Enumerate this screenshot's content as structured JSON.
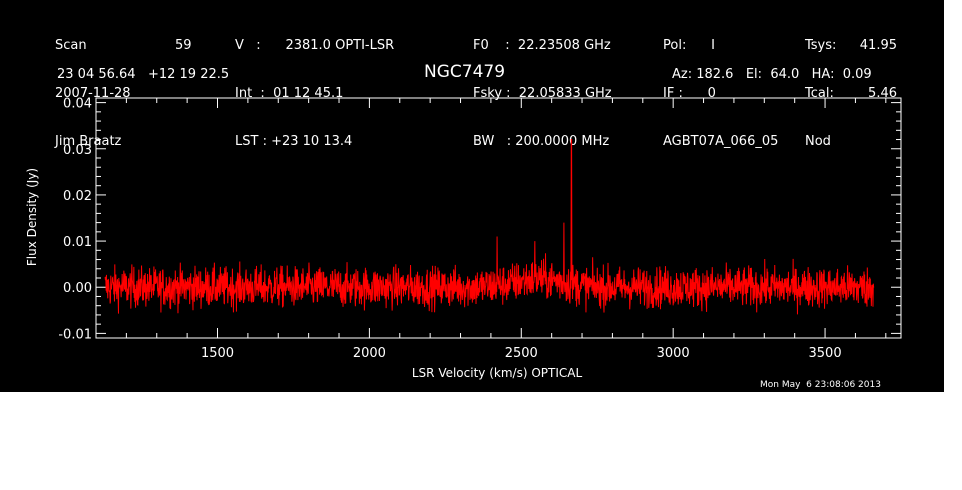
{
  "header": {
    "col1": [
      "Scan",
      "2007-11-28",
      "Jim Braatz"
    ],
    "col1b": [
      "59",
      "",
      ""
    ],
    "col2": [
      "V   :      2381.0 OPTI-LSR",
      "Int  :  01 12 45.1",
      "LST : +23 10 13.4"
    ],
    "col3": [
      "F0    :  22.23508 GHz",
      "Fsky :  22.05833 GHz",
      "BW   : 200.0000 MHz"
    ],
    "col4": [
      "Pol:      I",
      "IF :      0",
      "AGBT07A_066_05"
    ],
    "col5": [
      "Tsys:",
      "Tcal:",
      "Nod"
    ],
    "col5b": [
      "41.95",
      "5.46",
      ""
    ],
    "coords": "23 04 56.64   +12 19 22.5",
    "azel": "Az: 182.6   El:  64.0   HA:  0.09"
  },
  "footer_date": "Mon May  6 23:08:06 2013",
  "chart_data": {
    "type": "line",
    "title": "NGC7479",
    "xlabel": "LSR Velocity (km/s) OPTICAL",
    "ylabel": "Flux Density (Jy)",
    "xlim": [
      1100,
      3750
    ],
    "ylim": [
      -0.011,
      0.041
    ],
    "x_ticks": [
      1500,
      2000,
      2500,
      3000,
      3500
    ],
    "y_ticks": [
      -0.01,
      0.0,
      0.01,
      0.02,
      0.03,
      0.04
    ],
    "y_tick_labels": [
      "-0.01",
      "0.00",
      "0.01",
      "0.02",
      "0.03",
      "0.04"
    ],
    "grid": false,
    "series": [
      {
        "color": "#ff0000",
        "x_range": [
          1130,
          3660
        ],
        "noise_rms": 0.0022,
        "baseline": 0.0,
        "features": [
          {
            "x": 2420,
            "y": 0.011
          },
          {
            "x": 2545,
            "y": 0.01
          },
          {
            "x": 2640,
            "y": 0.014
          },
          {
            "x": 2665,
            "y": 0.032
          }
        ]
      }
    ]
  }
}
